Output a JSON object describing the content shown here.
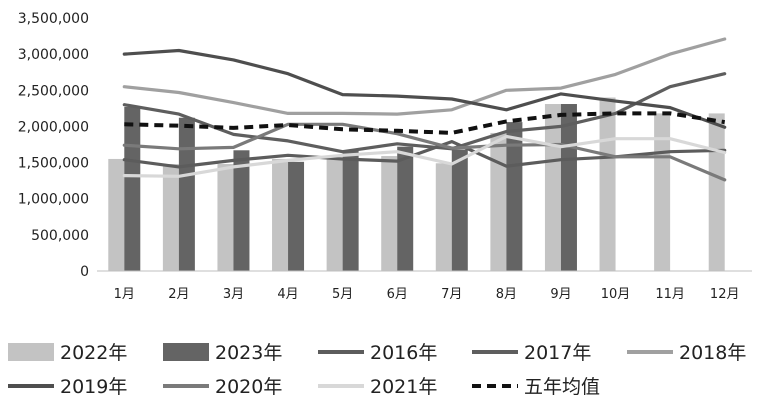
{
  "chart_data": {
    "type": "bar+line",
    "categories": [
      "1月",
      "2月",
      "3月",
      "4月",
      "5月",
      "6月",
      "7月",
      "8月",
      "9月",
      "10月",
      "11月",
      "12月"
    ],
    "y_ticks": [
      "0",
      "500,000",
      "1,000,000",
      "1,500,000",
      "2,000,000",
      "2,500,000",
      "3,000,000",
      "3,500,000"
    ],
    "ylim": [
      0,
      3500000
    ],
    "grid": false,
    "legend_position": "bottom",
    "bar_series": [
      {
        "name": "2022年",
        "color": "#c3c3c3",
        "values": [
          1550000,
          1480000,
          1480000,
          1550000,
          1570000,
          1590000,
          1490000,
          1910000,
          2310000,
          2400000,
          2180000,
          2180000
        ]
      },
      {
        "name": "2023年",
        "color": "#646464",
        "values": [
          2270000,
          2120000,
          1670000,
          1510000,
          1660000,
          1720000,
          1680000,
          2060000,
          2310000,
          null,
          null,
          null
        ]
      }
    ],
    "line_series": [
      {
        "name": "2016年",
        "color": "#5c5c5c",
        "dash": false,
        "values": [
          1540000,
          1440000,
          1530000,
          1600000,
          1550000,
          1520000,
          1790000,
          1450000,
          1540000,
          1580000,
          1650000,
          1670000
        ]
      },
      {
        "name": "2017年",
        "color": "#5e5e5e",
        "dash": false,
        "values": [
          2300000,
          2170000,
          1890000,
          1800000,
          1650000,
          1760000,
          1690000,
          1930000,
          2000000,
          2180000,
          2550000,
          2730000
        ]
      },
      {
        "name": "2018年",
        "color": "#a0a0a0",
        "dash": false,
        "values": [
          2550000,
          2470000,
          2330000,
          2180000,
          2180000,
          2170000,
          2230000,
          2500000,
          2530000,
          2720000,
          3000000,
          3210000
        ]
      },
      {
        "name": "2019年",
        "color": "#4e4e4e",
        "dash": false,
        "values": [
          3000000,
          3050000,
          2920000,
          2730000,
          2440000,
          2420000,
          2380000,
          2230000,
          2450000,
          2350000,
          2260000,
          1990000
        ]
      },
      {
        "name": "2020年",
        "color": "#7a7a7a",
        "dash": false,
        "values": [
          1740000,
          1690000,
          1710000,
          2030000,
          2030000,
          1900000,
          1700000,
          1740000,
          1750000,
          1580000,
          1580000,
          1260000
        ]
      },
      {
        "name": "2021年",
        "color": "#d8d8d8",
        "dash": false,
        "values": [
          1320000,
          1310000,
          1440000,
          1530000,
          1600000,
          1650000,
          1480000,
          1860000,
          1720000,
          1830000,
          1830000,
          1640000
        ]
      },
      {
        "name": "五年均值",
        "color": "#111111",
        "dash": true,
        "values": [
          2030000,
          2010000,
          1980000,
          2020000,
          1960000,
          1940000,
          1910000,
          2070000,
          2160000,
          2180000,
          2180000,
          2060000
        ]
      }
    ]
  }
}
